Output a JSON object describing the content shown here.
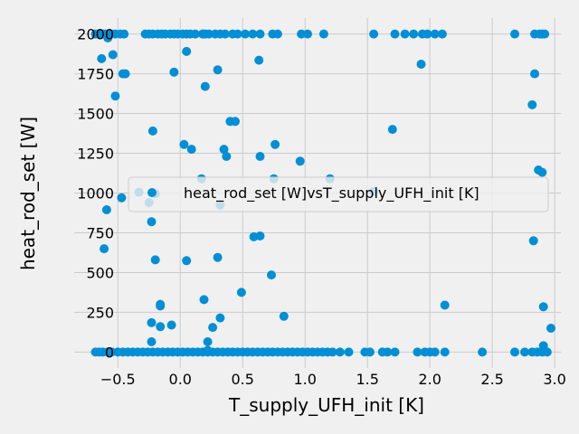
{
  "chart_data": {
    "type": "scatter",
    "title": "",
    "xlabel": "T_supply_UFH_init [K]",
    "ylabel": "heat_rod_set [W]",
    "xlim": [
      -0.85,
      3.05
    ],
    "ylim": [
      -100,
      2100
    ],
    "xticks": [
      -0.5,
      0.0,
      0.5,
      1.0,
      1.5,
      2.0,
      2.5,
      3.0
    ],
    "xtick_labels": [
      "−0.5",
      "0.0",
      "0.5",
      "1.0",
      "1.5",
      "2.0",
      "2.5",
      "3.0"
    ],
    "yticks": [
      0,
      250,
      500,
      750,
      1000,
      1250,
      1500,
      1750,
      2000
    ],
    "ytick_labels": [
      "0",
      "250",
      "500",
      "750",
      "1000",
      "1250",
      "1500",
      "1750",
      "2000"
    ],
    "grid": true,
    "legend_position": "center-right",
    "colors": {
      "marker": "#008fd5",
      "background": "#f0f0f0",
      "grid": "#cbcbcb"
    },
    "series": [
      {
        "name": "heat_rod_set [W]vsT_supply_UFH_init [K]",
        "x": [
          -0.68,
          -0.66,
          -0.64,
          -0.62,
          -0.6,
          -0.58,
          -0.55,
          -0.52,
          -0.48,
          -0.45,
          -0.28,
          -0.25,
          -0.22,
          -0.18,
          -0.15,
          -0.12,
          -0.08,
          -0.05,
          -0.02,
          0.02,
          0.05,
          0.08,
          0.12,
          0.18,
          0.2,
          0.23,
          0.28,
          0.32,
          0.36,
          0.42,
          0.46,
          0.52,
          0.58,
          0.64,
          0.74,
          0.78,
          0.97,
          1.02,
          1.15,
          1.55,
          1.72,
          1.8,
          1.87,
          1.94,
          1.98,
          2.04,
          2.1,
          2.68,
          2.84,
          2.88,
          2.9,
          2.92,
          -0.63,
          -0.54,
          -0.46,
          -0.05,
          0.05,
          0.18,
          0.3,
          0.63,
          1.93,
          2.84,
          -0.58,
          -0.52,
          -0.44,
          0.4,
          0.2,
          0.35,
          0.44,
          2.82,
          -0.22,
          0.03,
          0.64,
          1.7,
          0.76,
          0.37,
          0.09,
          0.96,
          -0.33,
          -0.25,
          -0.2,
          -0.47,
          0.17,
          0.75,
          2.87,
          2.9,
          1.2,
          1.55,
          -0.59,
          0.32,
          -0.23,
          0.59,
          0.64,
          2.83,
          -0.61,
          -0.2,
          0.3,
          0.05,
          0.73,
          0.49,
          -0.16,
          0.19,
          0.83,
          2.91,
          2.12,
          -0.16,
          -0.23,
          -0.16,
          0.32,
          0.26,
          -0.07,
          2.97,
          0.22,
          -0.23,
          0.22,
          2.91,
          -0.68,
          -0.65,
          -0.62,
          -0.58,
          -0.55,
          -0.5,
          -0.46,
          -0.42,
          -0.38,
          -0.34,
          -0.3,
          -0.26,
          -0.22,
          -0.18,
          -0.14,
          -0.1,
          -0.06,
          -0.02,
          0.02,
          0.06,
          0.1,
          0.14,
          0.18,
          0.22,
          0.26,
          0.3,
          0.34,
          0.38,
          0.42,
          0.46,
          0.5,
          0.54,
          0.58,
          0.62,
          0.66,
          0.7,
          0.74,
          0.78,
          0.82,
          0.86,
          0.9,
          0.94,
          0.98,
          1.02,
          1.06,
          1.1,
          1.14,
          1.18,
          1.22,
          1.28,
          1.35,
          1.48,
          1.52,
          1.62,
          1.66,
          1.72,
          1.9,
          1.96,
          2.0,
          2.04,
          2.12,
          2.42,
          2.68,
          2.76,
          2.82,
          2.86,
          2.9,
          2.94
        ],
        "y": [
          2000,
          2000,
          2000,
          2000,
          2000,
          2000,
          2000,
          2000,
          2000,
          2000,
          2000,
          2000,
          2000,
          2000,
          2000,
          2000,
          2000,
          2000,
          2000,
          2000,
          2000,
          2000,
          2000,
          2000,
          2000,
          2000,
          2000,
          2000,
          2000,
          2000,
          2000,
          2000,
          2000,
          2000,
          2000,
          2000,
          2000,
          2000,
          2000,
          2000,
          2000,
          2000,
          2000,
          2000,
          2000,
          2000,
          2000,
          2000,
          2000,
          2000,
          2000,
          2000,
          1845,
          1870,
          1750,
          1760,
          1890,
          2000,
          1775,
          1835,
          1810,
          1750,
          1975,
          1610,
          1750,
          1450,
          1670,
          1275,
          1450,
          1555,
          1390,
          1305,
          1230,
          1400,
          1305,
          1230,
          1275,
          1200,
          1005,
          940,
          995,
          970,
          1090,
          1090,
          1145,
          1130,
          1090,
          1010,
          895,
          925,
          820,
          725,
          730,
          700,
          650,
          580,
          595,
          575,
          485,
          375,
          300,
          330,
          225,
          285,
          295,
          290,
          185,
          160,
          215,
          155,
          170,
          150,
          65,
          65,
          10,
          40,
          0,
          0,
          0,
          0,
          0,
          0,
          0,
          0,
          0,
          0,
          0,
          0,
          0,
          0,
          0,
          0,
          0,
          0,
          0,
          0,
          0,
          0,
          0,
          0,
          0,
          0,
          0,
          0,
          0,
          0,
          0,
          0,
          0,
          0,
          0,
          0,
          0,
          0,
          0,
          0,
          0,
          0,
          0,
          0,
          0,
          0,
          0,
          0,
          0,
          0,
          0,
          0,
          0,
          0,
          0,
          0,
          0,
          0,
          0,
          0,
          0,
          0,
          0,
          0,
          0,
          0,
          0,
          0
        ]
      }
    ]
  }
}
